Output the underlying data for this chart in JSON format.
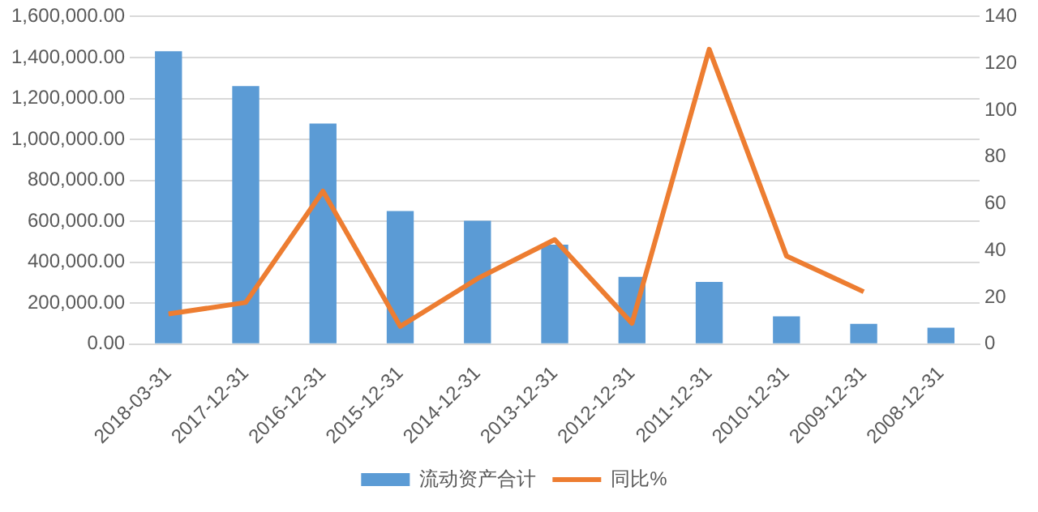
{
  "chart_data": {
    "type": "bar",
    "categories": [
      "2018-03-31",
      "2017-12-31",
      "2016-12-31",
      "2015-12-31",
      "2014-12-31",
      "2013-12-31",
      "2012-12-31",
      "2011-12-31",
      "2010-12-31",
      "2009-12-31",
      "2008-12-31"
    ],
    "series": [
      {
        "name": "流动资产合计",
        "color": "#5b9bd5",
        "values": [
          1430000,
          1260000,
          1077000,
          650000,
          603000,
          486000,
          329000,
          304000,
          136000,
          99000,
          80000
        ]
      },
      {
        "name": "同比%",
        "type": "line",
        "axis": "y2",
        "color": "#ed7d31",
        "values": [
          12.9,
          17.8,
          65.4,
          7.6,
          28,
          44.7,
          8.9,
          126,
          37.7,
          22.4,
          null
        ]
      }
    ],
    "ylim": [
      0,
      1600000
    ],
    "yticks": [
      {
        "value": 0,
        "label": "0.00"
      },
      {
        "value": 200000,
        "label": "200,000.00"
      },
      {
        "value": 400000,
        "label": "400,000.00"
      },
      {
        "value": 600000,
        "label": "600,000.00"
      },
      {
        "value": 800000,
        "label": "800,000.00"
      },
      {
        "value": 1000000,
        "label": "1,000,000.00"
      },
      {
        "value": 1200000,
        "label": "1,200,000.00"
      },
      {
        "value": 1400000,
        "label": "1,400,000.00"
      },
      {
        "value": 1600000,
        "label": "1,600,000.00"
      }
    ],
    "y2lim": [
      0,
      140
    ],
    "y2ticks": [
      0,
      20,
      40,
      60,
      80,
      100,
      120,
      140
    ],
    "grid": "y",
    "legend": "bottom",
    "marker": "none"
  }
}
